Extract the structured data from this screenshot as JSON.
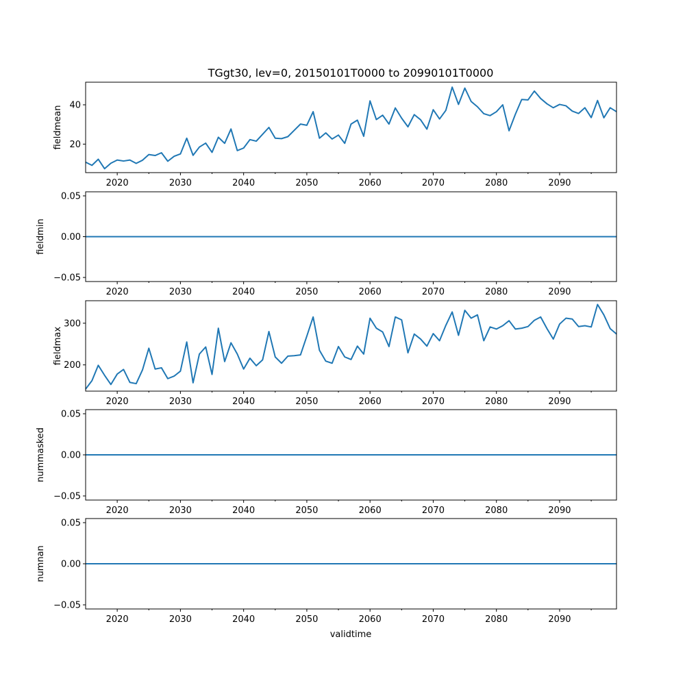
{
  "chart_data": {
    "type": "line",
    "title": "TGgt30, lev=0, 20150101T0000 to 20990101T0000",
    "xlabel": "validtime",
    "xlim": [
      2015,
      2099
    ],
    "x_major_ticks": [
      2020,
      2030,
      2040,
      2050,
      2060,
      2070,
      2080,
      2090
    ],
    "x_tick_labels": [
      "2020",
      "2030",
      "2040",
      "2050",
      "2060",
      "2070",
      "2080",
      "2090"
    ],
    "x_minor_ticks": [
      2025,
      2035,
      2045,
      2055,
      2065,
      2075,
      2085,
      2095
    ],
    "x": [
      2015,
      2016,
      2017,
      2018,
      2019,
      2020,
      2021,
      2022,
      2023,
      2024,
      2025,
      2026,
      2027,
      2028,
      2029,
      2030,
      2031,
      2032,
      2033,
      2034,
      2035,
      2036,
      2037,
      2038,
      2039,
      2040,
      2041,
      2042,
      2043,
      2044,
      2045,
      2046,
      2047,
      2048,
      2049,
      2050,
      2051,
      2052,
      2053,
      2054,
      2055,
      2056,
      2057,
      2058,
      2059,
      2060,
      2061,
      2062,
      2063,
      2064,
      2065,
      2066,
      2067,
      2068,
      2069,
      2070,
      2071,
      2072,
      2073,
      2074,
      2075,
      2076,
      2077,
      2078,
      2079,
      2080,
      2081,
      2082,
      2083,
      2084,
      2085,
      2086,
      2087,
      2088,
      2089,
      2090,
      2091,
      2092,
      2093,
      2094,
      2095,
      2096,
      2097,
      2098,
      2099
    ],
    "panels": [
      {
        "ylabel": "fieldmean",
        "ylim": [
          5.5,
          51.5
        ],
        "yticks": [
          20,
          40
        ],
        "ytick_labels": [
          "20",
          "40"
        ],
        "values": [
          10.8,
          9.2,
          12.3,
          7.5,
          10.3,
          11.9,
          11.4,
          11.9,
          10.2,
          11.8,
          14.7,
          14.2,
          15.6,
          11.3,
          13.8,
          15.0,
          23.0,
          14.3,
          18.5,
          20.5,
          15.8,
          23.5,
          20.4,
          27.7,
          16.7,
          18.0,
          22.3,
          21.5,
          25.0,
          28.5,
          23.0,
          22.8,
          23.8,
          27.0,
          30.2,
          29.6,
          36.5,
          23.0,
          25.7,
          22.6,
          24.6,
          20.4,
          30.2,
          32.2,
          24.0,
          42.0,
          32.5,
          34.7,
          30.2,
          38.4,
          33.2,
          28.8,
          35.0,
          32.4,
          27.6,
          37.5,
          32.8,
          37.2,
          49.0,
          40.2,
          48.5,
          41.7,
          39.0,
          35.5,
          34.5,
          36.5,
          40.0,
          26.8,
          35.2,
          42.7,
          42.5,
          47.0,
          43.2,
          40.5,
          38.5,
          40.2,
          39.5,
          36.8,
          35.6,
          38.5,
          33.5,
          42.2,
          33.4,
          38.5,
          36.5
        ]
      },
      {
        "ylabel": "fieldmin",
        "ylim": [
          -0.055,
          0.055
        ],
        "yticks": [
          -0.05,
          0.0,
          0.05
        ],
        "ytick_labels": [
          "−0.05",
          "0.00",
          "0.05"
        ],
        "constant": 0
      },
      {
        "ylabel": "fieldmax",
        "ylim": [
          137,
          354
        ],
        "yticks": [
          200,
          300
        ],
        "ytick_labels": [
          "200",
          "300"
        ],
        "values": [
          142,
          162,
          199,
          175,
          153,
          178,
          189,
          158,
          155,
          188,
          240,
          190,
          193,
          167,
          173,
          185,
          255,
          157,
          226,
          243,
          177,
          288,
          208,
          253,
          226,
          190,
          216,
          198,
          212,
          280,
          219,
          204,
          221,
          222,
          224,
          269,
          315,
          235,
          209,
          204,
          244,
          219,
          213,
          245,
          226,
          312,
          288,
          279,
          244,
          315,
          308,
          229,
          274,
          262,
          245,
          275,
          258,
          295,
          327,
          271,
          331,
          312,
          320,
          258,
          291,
          286,
          294,
          306,
          286,
          288,
          292,
          307,
          315,
          287,
          262,
          298,
          312,
          310,
          292,
          294,
          291,
          345,
          320,
          287,
          274
        ]
      },
      {
        "ylabel": "nummasked",
        "ylim": [
          -0.055,
          0.055
        ],
        "yticks": [
          -0.05,
          0.0,
          0.05
        ],
        "ytick_labels": [
          "−0.05",
          "0.00",
          "0.05"
        ],
        "constant": 0
      },
      {
        "ylabel": "numnan",
        "ylim": [
          -0.055,
          0.055
        ],
        "yticks": [
          -0.05,
          0.0,
          0.05
        ],
        "ytick_labels": [
          "−0.05",
          "0.00",
          "0.05"
        ],
        "constant": 0
      }
    ],
    "colors": {
      "series": "#1f77b4",
      "axes": "#000000",
      "background": "#ffffff"
    }
  }
}
